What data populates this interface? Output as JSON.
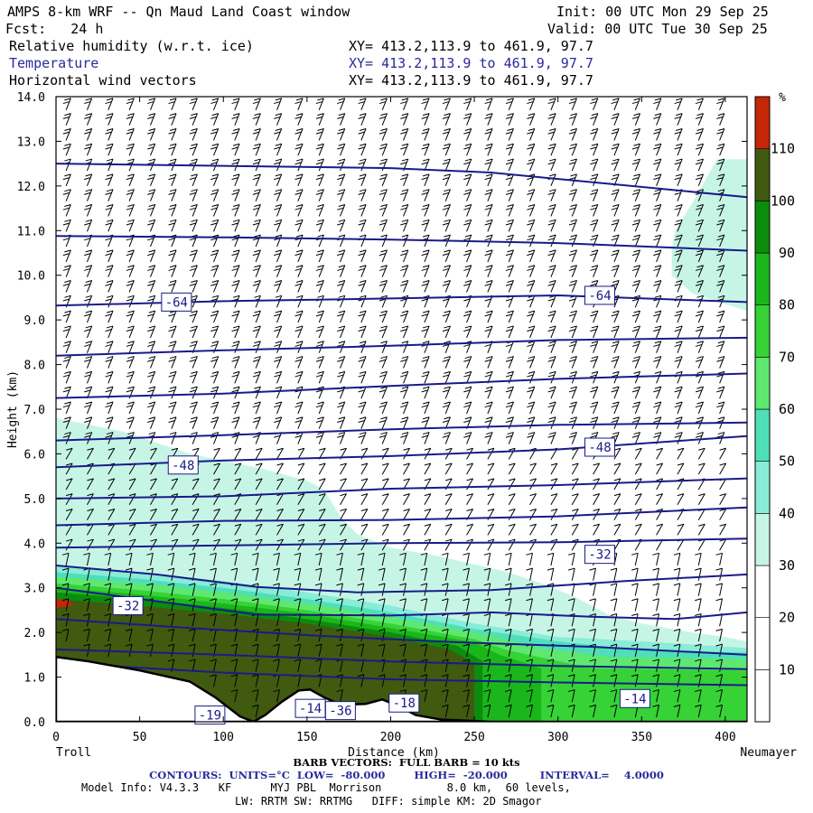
{
  "header": {
    "title": "AMPS 8-km WRF -- Qn Maud Land Coast window",
    "init": "Init: 00 UTC Mon 29 Sep 25",
    "fcst": "Fcst:   24 h",
    "valid": "Valid: 00 UTC Tue 30 Sep 25",
    "field1": "Relative humidity (w.r.t. ice)",
    "field2": "Temperature",
    "field3": "Horizontal wind vectors",
    "xy1": "XY= 413.2,113.9 to 461.9, 97.7",
    "xy2": "XY= 413.2,113.9 to 461.9, 97.7",
    "xy3": "XY= 413.2,113.9 to 461.9, 97.7"
  },
  "colors": {
    "contour": "#1a1a8a",
    "bands": [
      "#ffffff",
      "#ffffff",
      "#ffffff",
      "#c6f5e6",
      "#88ecd8",
      "#4fdfb8",
      "#5ee870",
      "#36d236",
      "#1bb61b",
      "#0c8c0c",
      "#405a10",
      "#c62608"
    ]
  },
  "chart_data": {
    "type": "cross-section",
    "xlabel": "Distance (km)",
    "ylabel": "Height (km)",
    "xlim": [
      0,
      413
    ],
    "ylim": [
      0,
      14
    ],
    "x_ticks": [
      "0",
      "50",
      "100",
      "150",
      "200",
      "250",
      "300",
      "350",
      "400"
    ],
    "y_ticks": [
      "0.0",
      "1.0",
      "2.0",
      "3.0",
      "4.0",
      "5.0",
      "6.0",
      "7.0",
      "8.0",
      "9.0",
      "10.0",
      "11.0",
      "12.0",
      "13.0",
      "14.0"
    ],
    "left_endpoint": "Troll",
    "right_endpoint": "Neumayer",
    "colorbar_unit": "%",
    "colorbar_ticks": [
      "10",
      "20",
      "30",
      "40",
      "50",
      "60",
      "70",
      "80",
      "90",
      "100",
      "110"
    ],
    "colorbar_min": 0,
    "colorbar_max": 120,
    "contour_labels": [
      {
        "text": "-64",
        "x": 72,
        "y": 9.4
      },
      {
        "text": "-64",
        "x": 325,
        "y": 9.55
      },
      {
        "text": "-48",
        "x": 76,
        "y": 5.75
      },
      {
        "text": "-48",
        "x": 325,
        "y": 6.15
      },
      {
        "text": "-32",
        "x": 325,
        "y": 3.75
      },
      {
        "text": "-32",
        "x": 43,
        "y": 2.6
      },
      {
        "text": "-19",
        "x": 92,
        "y": 0.15
      },
      {
        "text": "-14",
        "x": 152,
        "y": 0.3
      },
      {
        "text": "-36",
        "x": 170,
        "y": 0.25
      },
      {
        "text": "-18",
        "x": 208,
        "y": 0.42
      },
      {
        "text": "-14",
        "x": 346,
        "y": 0.52
      }
    ],
    "temperature_contours_height_km": [
      [
        [
          0,
          12.5
        ],
        [
          100,
          12.45
        ],
        [
          200,
          12.4
        ],
        [
          260,
          12.3
        ],
        [
          330,
          12.05
        ],
        [
          413,
          11.75
        ]
      ],
      [
        [
          0,
          10.88
        ],
        [
          100,
          10.85
        ],
        [
          200,
          10.8
        ],
        [
          300,
          10.72
        ],
        [
          413,
          10.55
        ]
      ],
      [
        [
          0,
          9.32
        ],
        [
          100,
          9.42
        ],
        [
          200,
          9.48
        ],
        [
          300,
          9.55
        ],
        [
          413,
          9.4
        ]
      ],
      [
        [
          0,
          8.2
        ],
        [
          100,
          8.32
        ],
        [
          200,
          8.42
        ],
        [
          300,
          8.55
        ],
        [
          413,
          8.6
        ]
      ],
      [
        [
          0,
          7.25
        ],
        [
          100,
          7.35
        ],
        [
          200,
          7.52
        ],
        [
          300,
          7.68
        ],
        [
          413,
          7.8
        ]
      ],
      [
        [
          0,
          6.3
        ],
        [
          100,
          6.42
        ],
        [
          200,
          6.55
        ],
        [
          300,
          6.65
        ],
        [
          413,
          6.7
        ]
      ],
      [
        [
          0,
          5.7
        ],
        [
          100,
          5.85
        ],
        [
          200,
          5.95
        ],
        [
          300,
          6.1
        ],
        [
          413,
          6.4
        ]
      ],
      [
        [
          0,
          5.0
        ],
        [
          100,
          5.05
        ],
        [
          200,
          5.22
        ],
        [
          300,
          5.3
        ],
        [
          413,
          5.45
        ]
      ],
      [
        [
          0,
          4.4
        ],
        [
          100,
          4.5
        ],
        [
          200,
          4.52
        ],
        [
          300,
          4.6
        ],
        [
          413,
          4.8
        ]
      ],
      [
        [
          0,
          3.9
        ],
        [
          100,
          3.95
        ],
        [
          200,
          4.0
        ],
        [
          300,
          4.02
        ],
        [
          413,
          4.1
        ]
      ],
      [
        [
          0,
          3.5
        ],
        [
          60,
          3.3
        ],
        [
          120,
          3.02
        ],
        [
          180,
          2.9
        ],
        [
          260,
          2.95
        ],
        [
          340,
          3.15
        ],
        [
          413,
          3.3
        ]
      ],
      [
        [
          0,
          3.0
        ],
        [
          60,
          2.7
        ],
        [
          120,
          2.4
        ],
        [
          200,
          2.38
        ],
        [
          260,
          2.45
        ],
        [
          320,
          2.35
        ],
        [
          370,
          2.3
        ],
        [
          413,
          2.45
        ]
      ],
      [
        [
          0,
          2.3
        ],
        [
          80,
          2.1
        ],
        [
          160,
          1.92
        ],
        [
          240,
          1.78
        ],
        [
          320,
          1.68
        ],
        [
          413,
          1.5
        ]
      ],
      [
        [
          0,
          1.62
        ],
        [
          100,
          1.5
        ],
        [
          200,
          1.35
        ],
        [
          300,
          1.25
        ],
        [
          413,
          1.18
        ]
      ],
      [
        [
          0,
          1.32
        ],
        [
          100,
          1.1
        ],
        [
          200,
          0.95
        ],
        [
          300,
          0.88
        ],
        [
          413,
          0.82
        ]
      ]
    ],
    "humidity_bands_height_km": [
      {
        "level": 35,
        "upper": [
          [
            0,
            6.8
          ],
          [
            40,
            6.5
          ],
          [
            80,
            6.0
          ],
          [
            120,
            5.7
          ],
          [
            150,
            5.4
          ],
          [
            160,
            5.2
          ],
          [
            170,
            4.6
          ],
          [
            180,
            4.2
          ],
          [
            200,
            3.9
          ],
          [
            230,
            3.7
          ],
          [
            270,
            3.35
          ],
          [
            290,
            3.1
          ],
          [
            310,
            2.8
          ],
          [
            330,
            2.4
          ],
          [
            350,
            2.2
          ],
          [
            380,
            2.0
          ],
          [
            400,
            1.9
          ],
          [
            413,
            1.8
          ]
        ]
      },
      {
        "level": 45,
        "upper": [
          [
            0,
            3.5
          ],
          [
            50,
            3.35
          ],
          [
            100,
            3.15
          ],
          [
            150,
            2.9
          ],
          [
            200,
            2.6
          ],
          [
            250,
            2.2
          ],
          [
            300,
            1.9
          ],
          [
            350,
            1.8
          ],
          [
            413,
            1.65
          ]
        ]
      },
      {
        "level": 55,
        "upper": [
          [
            0,
            3.35
          ],
          [
            50,
            3.2
          ],
          [
            100,
            3.0
          ],
          [
            150,
            2.75
          ],
          [
            200,
            2.45
          ],
          [
            250,
            2.08
          ],
          [
            300,
            1.8
          ],
          [
            350,
            1.6
          ],
          [
            413,
            1.55
          ]
        ]
      },
      {
        "level": 65,
        "upper": [
          [
            0,
            3.25
          ],
          [
            50,
            3.1
          ],
          [
            100,
            2.9
          ],
          [
            150,
            2.65
          ],
          [
            200,
            2.35
          ],
          [
            250,
            2.0
          ],
          [
            290,
            1.65
          ],
          [
            330,
            1.45
          ],
          [
            413,
            1.4
          ]
        ]
      },
      {
        "level": 75,
        "upper": [
          [
            0,
            3.1
          ],
          [
            50,
            2.95
          ],
          [
            100,
            2.75
          ],
          [
            150,
            2.5
          ],
          [
            200,
            2.2
          ],
          [
            250,
            1.85
          ],
          [
            270,
            1.6
          ],
          [
            320,
            1.2
          ],
          [
            413,
            1.15
          ]
        ]
      },
      {
        "level": 85,
        "upper": [
          [
            0,
            3.0
          ],
          [
            50,
            2.85
          ],
          [
            100,
            2.65
          ],
          [
            150,
            2.42
          ],
          [
            200,
            2.1
          ],
          [
            250,
            1.78
          ],
          [
            265,
            1.5
          ],
          [
            290,
            1.2
          ]
        ]
      },
      {
        "level": 95,
        "upper": [
          [
            0,
            2.9
          ],
          [
            50,
            2.75
          ],
          [
            100,
            2.55
          ],
          [
            150,
            2.3
          ],
          [
            200,
            2.0
          ],
          [
            240,
            1.7
          ],
          [
            255,
            1.35
          ]
        ]
      },
      {
        "level": 100,
        "upper": [
          [
            0,
            2.75
          ],
          [
            50,
            2.6
          ],
          [
            100,
            2.42
          ],
          [
            150,
            2.2
          ],
          [
            200,
            1.9
          ],
          [
            235,
            1.62
          ],
          [
            250,
            1.3
          ]
        ]
      },
      {
        "level": 110,
        "upper": [
          [
            0,
            2.75
          ],
          [
            8,
            2.72
          ],
          [
            10,
            2.6
          ],
          [
            0,
            2.55
          ]
        ]
      }
    ],
    "upper_moist_region_km": [
      [
        413,
        12.6
      ],
      [
        395,
        12.6
      ],
      [
        380,
        11.6
      ],
      [
        370,
        11.0
      ],
      [
        368,
        10.6
      ],
      [
        368,
        10.0
      ],
      [
        380,
        9.6
      ],
      [
        413,
        9.2
      ]
    ],
    "terrain_height_km": [
      [
        0,
        1.45
      ],
      [
        20,
        1.35
      ],
      [
        50,
        1.15
      ],
      [
        80,
        0.9
      ],
      [
        95,
        0.55
      ],
      [
        110,
        0.12
      ],
      [
        118,
        0.0
      ],
      [
        125,
        0.15
      ],
      [
        135,
        0.45
      ],
      [
        145,
        0.7
      ],
      [
        152,
        0.72
      ],
      [
        160,
        0.55
      ],
      [
        170,
        0.38
      ],
      [
        185,
        0.4
      ],
      [
        195,
        0.5
      ],
      [
        205,
        0.35
      ],
      [
        215,
        0.15
      ],
      [
        230,
        0.05
      ],
      [
        260,
        0.0
      ],
      [
        330,
        0.0
      ],
      [
        413,
        0.0
      ]
    ]
  },
  "footer": {
    "line1": "BARB VECTORS:  FULL BARB = 10 kts",
    "line2": "CONTOURS:  UNITS=°C  LOW=  -80.000        HIGH=  -20.000         INTERVAL=    4.0000",
    "line3": "Model Info: V4.3.3   KF      MYJ PBL  Morrison          8.0 km,  60 levels,",
    "line4": "LW: RRTM SW: RRTMG   DIFF: simple KM: 2D Smagor"
  }
}
